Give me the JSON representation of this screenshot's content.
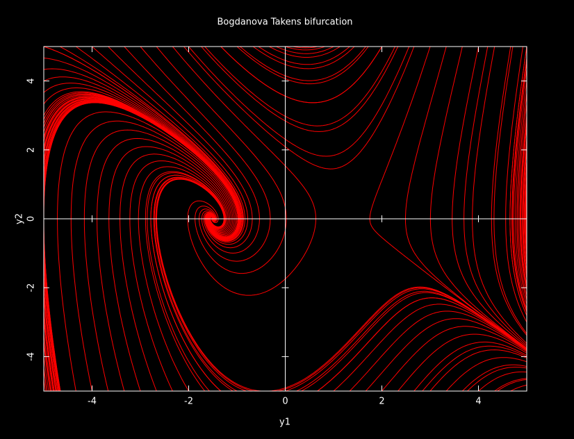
{
  "chart_data": {
    "type": "phase",
    "title": "Bogdanova  Takens bifurcation",
    "x_label": "y1",
    "y_label": "y2",
    "xlim": [
      -5,
      5
    ],
    "ylim": [
      -5,
      5
    ],
    "xticks": [
      -4,
      -2,
      0,
      2,
      4
    ],
    "yticks": [
      -4,
      -2,
      0,
      2,
      4
    ],
    "color": "#ff0000"
  }
}
